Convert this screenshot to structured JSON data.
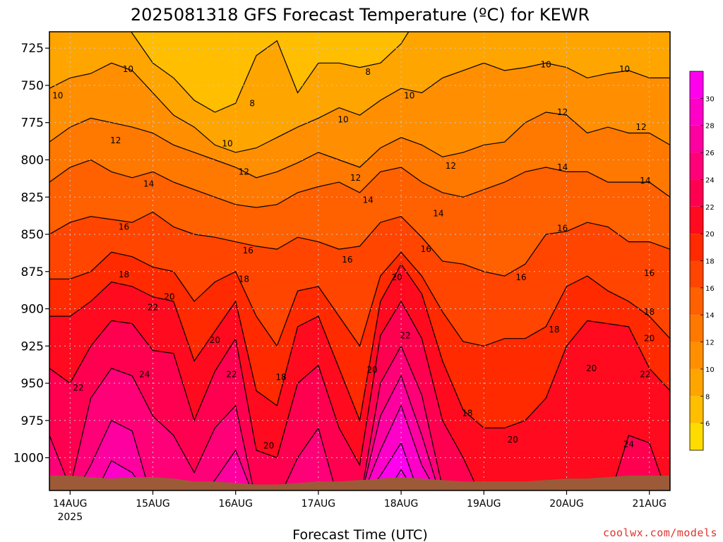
{
  "chart_data": {
    "type": "heatmap",
    "title": "2025081318 GFS Forecast Temperature (ºC) for KEWR",
    "xlabel": "Forecast Time (UTC)",
    "ylabel": "",
    "credit": "coolwx.com/models",
    "colors": {
      "plot_background": "#ffff00",
      "surface": "#9c5a38",
      "gridline": "#c8c8c8"
    },
    "y_axis": {
      "ticks": [
        725,
        750,
        775,
        800,
        825,
        850,
        875,
        900,
        925,
        950,
        975,
        1000
      ],
      "range": [
        1022,
        714
      ],
      "unit": "hPa"
    },
    "x_axis": {
      "range_days": [
        -0.25,
        7.25
      ],
      "ticks": [
        {
          "day": 0,
          "label": "14AUG",
          "sublabel": "2025"
        },
        {
          "day": 1,
          "label": "15AUG"
        },
        {
          "day": 2,
          "label": "16AUG"
        },
        {
          "day": 3,
          "label": "17AUG"
        },
        {
          "day": 4,
          "label": "18AUG"
        },
        {
          "day": 5,
          "label": "19AUG"
        },
        {
          "day": 6,
          "label": "20AUG"
        },
        {
          "day": 7,
          "label": "21AUG"
        }
      ]
    },
    "colorbar": {
      "levels": [
        4,
        6,
        8,
        10,
        12,
        14,
        16,
        18,
        20,
        22,
        24,
        26,
        28,
        30,
        32
      ],
      "labels": [
        6,
        8,
        10,
        12,
        14,
        16,
        18,
        20,
        22,
        24,
        26,
        28,
        30
      ],
      "colors": [
        "#ffdc00",
        "#ffbe00",
        "#ffa500",
        "#ff8f00",
        "#ff7800",
        "#ff6000",
        "#ff4500",
        "#ff2a00",
        "#ff0a1e",
        "#ff0050",
        "#ff0078",
        "#ff00a0",
        "#ff00c8",
        "#ff00ee"
      ]
    },
    "forecast_days": [
      -0.25,
      0,
      0.25,
      0.5,
      0.75,
      1,
      1.25,
      1.5,
      1.75,
      2,
      2.25,
      2.5,
      2.75,
      3,
      3.25,
      3.5,
      3.75,
      4,
      4.25,
      4.5,
      4.75,
      5,
      5.25,
      5.5,
      5.75,
      6,
      6.25,
      6.5,
      6.75,
      7,
      7.25
    ],
    "surface_pressure_hpa": [
      1012,
      1012,
      1013,
      1014,
      1013,
      1013,
      1014,
      1016,
      1016,
      1017,
      1018,
      1018,
      1017,
      1016,
      1016,
      1015,
      1014,
      1013,
      1014,
      1015,
      1016,
      1016,
      1016,
      1016,
      1015,
      1014,
      1014,
      1013,
      1012,
      1012,
      1012
    ],
    "isotherms": [
      {
        "value": 8,
        "pressure": [
          690,
          690,
          690,
          695,
          715,
          735,
          745,
          760,
          768,
          762,
          730,
          720,
          755,
          735,
          735,
          738,
          735,
          722,
          700,
          690,
          690,
          690,
          690,
          690,
          690,
          690,
          690,
          690,
          690,
          690,
          690
        ]
      },
      {
        "value": 10,
        "pressure": [
          752,
          745,
          742,
          735,
          740,
          755,
          770,
          778,
          790,
          795,
          792,
          785,
          778,
          772,
          765,
          770,
          760,
          752,
          755,
          745,
          740,
          735,
          740,
          738,
          735,
          738,
          745,
          742,
          740,
          745,
          745
        ]
      },
      {
        "value": 12,
        "pressure": [
          788,
          778,
          772,
          775,
          778,
          782,
          790,
          795,
          800,
          805,
          812,
          808,
          802,
          795,
          800,
          805,
          792,
          785,
          790,
          798,
          795,
          790,
          788,
          775,
          768,
          770,
          782,
          778,
          782,
          782,
          790
        ]
      },
      {
        "value": 14,
        "pressure": [
          815,
          805,
          800,
          808,
          812,
          808,
          815,
          820,
          825,
          830,
          832,
          830,
          822,
          818,
          815,
          822,
          808,
          805,
          815,
          822,
          825,
          820,
          815,
          808,
          805,
          808,
          808,
          815,
          815,
          815,
          825
        ]
      },
      {
        "value": 16,
        "pressure": [
          850,
          842,
          838,
          840,
          842,
          835,
          845,
          850,
          852,
          855,
          858,
          860,
          852,
          855,
          860,
          858,
          842,
          838,
          852,
          868,
          870,
          875,
          878,
          870,
          850,
          848,
          842,
          845,
          855,
          855,
          860
        ]
      },
      {
        "value": 18,
        "pressure": [
          880,
          880,
          875,
          862,
          865,
          872,
          875,
          895,
          882,
          875,
          905,
          925,
          888,
          885,
          905,
          925,
          878,
          862,
          878,
          902,
          922,
          925,
          920,
          920,
          912,
          885,
          878,
          888,
          895,
          905,
          920
        ]
      },
      {
        "value": 20,
        "pressure": [
          905,
          905,
          895,
          882,
          885,
          892,
          895,
          935,
          915,
          895,
          955,
          965,
          912,
          905,
          940,
          975,
          895,
          870,
          890,
          935,
          968,
          980,
          980,
          975,
          960,
          925,
          908,
          910,
          912,
          940,
          955
        ]
      },
      {
        "value": 22,
        "pressure": [
          940,
          950,
          925,
          908,
          910,
          928,
          930,
          975,
          942,
          920,
          995,
          1000,
          950,
          938,
          980,
          1005,
          918,
          895,
          920,
          975,
          1000,
          1030,
          1030,
          1030,
          1030,
          1030,
          1030,
          1030,
          985,
          990,
          1030
        ]
      },
      {
        "value": 24,
        "pressure": [
          985,
          1020,
          960,
          940,
          945,
          972,
          985,
          1010,
          980,
          965,
          1030,
          1030,
          1000,
          980,
          1030,
          1030,
          950,
          925,
          958,
          1020,
          1030,
          1030,
          1030,
          1030,
          1030,
          1030,
          1030,
          1030,
          1030,
          1020,
          1030
        ]
      },
      {
        "value": 26,
        "pressure": [
          1030,
          1030,
          1005,
          975,
          982,
          1030,
          1030,
          1030,
          1015,
          995,
          1030,
          1030,
          1030,
          1020,
          1030,
          1030,
          972,
          945,
          985,
          1030,
          1030,
          1030,
          1030,
          1030,
          1030,
          1030,
          1030,
          1030,
          1030,
          1030,
          1030
        ]
      },
      {
        "value": 28,
        "pressure": [
          1030,
          1030,
          1030,
          1002,
          1010,
          1030,
          1030,
          1030,
          1030,
          1030,
          1030,
          1030,
          1030,
          1030,
          1030,
          1030,
          995,
          965,
          1005,
          1030,
          1030,
          1030,
          1030,
          1030,
          1030,
          1030,
          1030,
          1030,
          1030,
          1030,
          1030
        ]
      },
      {
        "value": 30,
        "pressure": [
          1030,
          1030,
          1030,
          1030,
          1030,
          1030,
          1030,
          1030,
          1030,
          1030,
          1030,
          1030,
          1030,
          1030,
          1030,
          1030,
          1012,
          990,
          1030,
          1030,
          1030,
          1030,
          1030,
          1030,
          1030,
          1030,
          1030,
          1030,
          1030,
          1030,
          1030
        ]
      },
      {
        "value": 32,
        "pressure": [
          1030,
          1030,
          1030,
          1030,
          1030,
          1030,
          1030,
          1030,
          1030,
          1030,
          1030,
          1030,
          1030,
          1030,
          1030,
          1030,
          1030,
          1008,
          1030,
          1030,
          1030,
          1030,
          1030,
          1030,
          1030,
          1030,
          1030,
          1030,
          1030,
          1030,
          1030
        ]
      }
    ],
    "contour_labels": [
      {
        "value": 8,
        "day": 2.2,
        "pressure": 762
      },
      {
        "value": 8,
        "day": 3.6,
        "pressure": 741
      },
      {
        "value": 10,
        "day": 0.7,
        "pressure": 739
      },
      {
        "value": 10,
        "day": -0.15,
        "pressure": 757
      },
      {
        "value": 10,
        "day": 1.9,
        "pressure": 789
      },
      {
        "value": 10,
        "day": 3.3,
        "pressure": 773
      },
      {
        "value": 10,
        "day": 4.1,
        "pressure": 757
      },
      {
        "value": 10,
        "day": 5.75,
        "pressure": 736
      },
      {
        "value": 10,
        "day": 6.7,
        "pressure": 739
      },
      {
        "value": 12,
        "day": 0.55,
        "pressure": 787
      },
      {
        "value": 12,
        "day": 2.1,
        "pressure": 808
      },
      {
        "value": 12,
        "day": 3.45,
        "pressure": 812
      },
      {
        "value": 12,
        "day": 4.6,
        "pressure": 804
      },
      {
        "value": 12,
        "day": 5.95,
        "pressure": 768
      },
      {
        "value": 12,
        "day": 6.9,
        "pressure": 778
      },
      {
        "value": 14,
        "day": 0.95,
        "pressure": 816
      },
      {
        "value": 14,
        "day": 3.6,
        "pressure": 827
      },
      {
        "value": 14,
        "day": 4.45,
        "pressure": 836
      },
      {
        "value": 14,
        "day": 5.95,
        "pressure": 805
      },
      {
        "value": 14,
        "day": 6.95,
        "pressure": 814
      },
      {
        "value": 16,
        "day": 0.65,
        "pressure": 845
      },
      {
        "value": 16,
        "day": 2.15,
        "pressure": 861
      },
      {
        "value": 16,
        "day": 3.35,
        "pressure": 867
      },
      {
        "value": 16,
        "day": 4.3,
        "pressure": 860
      },
      {
        "value": 16,
        "day": 5.45,
        "pressure": 879
      },
      {
        "value": 16,
        "day": 5.95,
        "pressure": 846
      },
      {
        "value": 16,
        "day": 7.0,
        "pressure": 876
      },
      {
        "value": 18,
        "day": 0.65,
        "pressure": 877
      },
      {
        "value": 18,
        "day": 2.1,
        "pressure": 880
      },
      {
        "value": 18,
        "day": 2.55,
        "pressure": 946
      },
      {
        "value": 18,
        "day": 4.8,
        "pressure": 970
      },
      {
        "value": 18,
        "day": 5.85,
        "pressure": 914
      },
      {
        "value": 18,
        "day": 7.0,
        "pressure": 902
      },
      {
        "value": 20,
        "day": 1.2,
        "pressure": 892
      },
      {
        "value": 20,
        "day": 1.75,
        "pressure": 921
      },
      {
        "value": 20,
        "day": 2.4,
        "pressure": 992
      },
      {
        "value": 20,
        "day": 3.65,
        "pressure": 941
      },
      {
        "value": 20,
        "day": 3.95,
        "pressure": 879
      },
      {
        "value": 20,
        "day": 5.35,
        "pressure": 988
      },
      {
        "value": 20,
        "day": 6.3,
        "pressure": 940
      },
      {
        "value": 20,
        "day": 7.0,
        "pressure": 920
      },
      {
        "value": 22,
        "day": 0.1,
        "pressure": 953
      },
      {
        "value": 22,
        "day": 1.0,
        "pressure": 899
      },
      {
        "value": 22,
        "day": 1.95,
        "pressure": 944
      },
      {
        "value": 22,
        "day": 4.05,
        "pressure": 918
      },
      {
        "value": 22,
        "day": 6.95,
        "pressure": 944
      },
      {
        "value": 24,
        "day": 0.9,
        "pressure": 944
      },
      {
        "value": 24,
        "day": 6.75,
        "pressure": 991
      }
    ]
  }
}
